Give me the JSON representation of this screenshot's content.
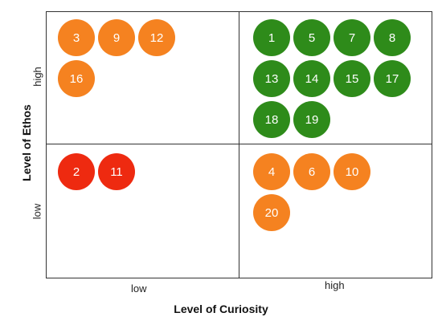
{
  "axes": {
    "x_label": "Level of Curiosity",
    "y_label": "Level of Ethos",
    "x_ticks": [
      "low",
      "high"
    ],
    "y_ticks": [
      "high",
      "low"
    ]
  },
  "colors": {
    "orange": "#f58220",
    "green": "#2e8b1a",
    "red": "#ee2a10"
  },
  "quadrants": [
    {
      "id": "high-ethos-low-curiosity",
      "color": "orange",
      "items": [
        "3",
        "9",
        "12",
        "16"
      ]
    },
    {
      "id": "high-ethos-high-curiosity",
      "color": "green",
      "items": [
        "1",
        "5",
        "7",
        "8",
        "13",
        "14",
        "15",
        "17",
        "18",
        "19"
      ]
    },
    {
      "id": "low-ethos-low-curiosity",
      "color": "red",
      "items": [
        "2",
        "11"
      ]
    },
    {
      "id": "low-ethos-high-curiosity",
      "color": "orange",
      "items": [
        "4",
        "6",
        "10",
        "20"
      ]
    }
  ]
}
